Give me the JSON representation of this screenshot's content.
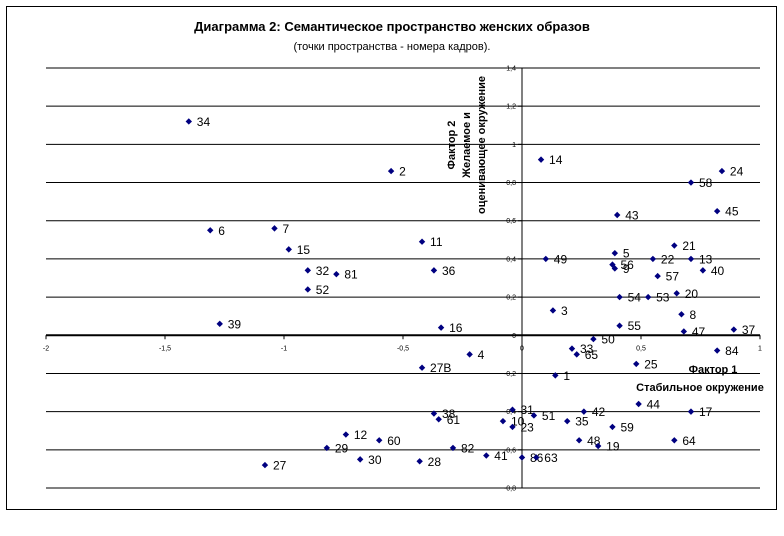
{
  "chart_data": {
    "type": "scatter",
    "title": "Диаграмма 2: Семантическое пространство женских образов",
    "subtitle": "(точки пространства - номера   кадров).",
    "x_axis": {
      "title_lines": [
        "Фактор 1",
        "Стабильное окружение"
      ],
      "range": [
        -2,
        1
      ],
      "ticks": [
        {
          "v": -2,
          "label": "-2"
        },
        {
          "v": -1.5,
          "label": "-1,5"
        },
        {
          "v": -1,
          "label": "-1"
        },
        {
          "v": -0.5,
          "label": "-0,5"
        },
        {
          "v": 0,
          "label": "0"
        },
        {
          "v": 0.5,
          "label": "0,5"
        },
        {
          "v": 1,
          "label": "1"
        }
      ]
    },
    "y_axis": {
      "title_lines": [
        "Фактор 2",
        "Желаемое и",
        "оценивающее окружение"
      ],
      "range": [
        -0.8,
        1.4
      ],
      "ticks": [
        {
          "v": 1.4,
          "label": "1,4"
        },
        {
          "v": 1.2,
          "label": "1,2"
        },
        {
          "v": 1,
          "label": "1"
        },
        {
          "v": 0.8,
          "label": "0,8"
        },
        {
          "v": 0.6,
          "label": "0,6"
        },
        {
          "v": 0.4,
          "label": "0,4"
        },
        {
          "v": 0.2,
          "label": "0,2"
        },
        {
          "v": 0,
          "label": "0"
        },
        {
          "v": -0.2,
          "label": "-0,2"
        },
        {
          "v": -0.4,
          "label": "-0,4"
        },
        {
          "v": -0.6,
          "label": "-0,6"
        },
        {
          "v": -0.8,
          "label": "-0,8"
        }
      ]
    },
    "grid": "horizontal",
    "marker_color": "#000080",
    "points": [
      {
        "label": "34",
        "x": -1.4,
        "y": 1.12
      },
      {
        "label": "2",
        "x": -0.55,
        "y": 0.86
      },
      {
        "label": "14",
        "x": 0.08,
        "y": 0.92
      },
      {
        "label": "24",
        "x": 0.84,
        "y": 0.86
      },
      {
        "label": "58",
        "x": 0.71,
        "y": 0.8
      },
      {
        "label": "43",
        "x": 0.4,
        "y": 0.63
      },
      {
        "label": "45",
        "x": 0.82,
        "y": 0.65
      },
      {
        "label": "6",
        "x": -1.31,
        "y": 0.55
      },
      {
        "label": "7",
        "x": -1.04,
        "y": 0.56
      },
      {
        "label": "11",
        "x": -0.42,
        "y": 0.49
      },
      {
        "label": "15",
        "x": -0.98,
        "y": 0.45
      },
      {
        "label": "21",
        "x": 0.64,
        "y": 0.47
      },
      {
        "label": "5",
        "x": 0.39,
        "y": 0.43
      },
      {
        "label": "22",
        "x": 0.55,
        "y": 0.4
      },
      {
        "label": "13",
        "x": 0.71,
        "y": 0.4
      },
      {
        "label": "49",
        "x": 0.1,
        "y": 0.4
      },
      {
        "label": "56",
        "x": 0.38,
        "y": 0.37
      },
      {
        "label": "9",
        "x": 0.39,
        "y": 0.35
      },
      {
        "label": "40",
        "x": 0.76,
        "y": 0.34
      },
      {
        "label": "32",
        "x": -0.9,
        "y": 0.34
      },
      {
        "label": "36",
        "x": -0.37,
        "y": 0.34
      },
      {
        "label": "81",
        "x": -0.78,
        "y": 0.32
      },
      {
        "label": "57",
        "x": 0.57,
        "y": 0.31
      },
      {
        "label": "52",
        "x": -0.9,
        "y": 0.24
      },
      {
        "label": "20",
        "x": 0.65,
        "y": 0.22
      },
      {
        "label": "54",
        "x": 0.41,
        "y": 0.2
      },
      {
        "label": "53",
        "x": 0.53,
        "y": 0.2
      },
      {
        "label": "3",
        "x": 0.13,
        "y": 0.13
      },
      {
        "label": "8",
        "x": 0.67,
        "y": 0.11
      },
      {
        "label": "39",
        "x": -1.27,
        "y": 0.06
      },
      {
        "label": "16",
        "x": -0.34,
        "y": 0.04
      },
      {
        "label": "55",
        "x": 0.41,
        "y": 0.05
      },
      {
        "label": "37",
        "x": 0.89,
        "y": 0.03
      },
      {
        "label": "47",
        "x": 0.68,
        "y": 0.02
      },
      {
        "label": "50",
        "x": 0.3,
        "y": -0.02
      },
      {
        "label": "33",
        "x": 0.21,
        "y": -0.07
      },
      {
        "label": "65",
        "x": 0.23,
        "y": -0.1
      },
      {
        "label": "4",
        "x": -0.22,
        "y": -0.1
      },
      {
        "label": "84",
        "x": 0.82,
        "y": -0.08
      },
      {
        "label": "27В",
        "x": -0.42,
        "y": -0.17
      },
      {
        "label": "25",
        "x": 0.48,
        "y": -0.15
      },
      {
        "label": "1",
        "x": 0.14,
        "y": -0.21
      },
      {
        "label": "44",
        "x": 0.49,
        "y": -0.36
      },
      {
        "label": "17",
        "x": 0.71,
        "y": -0.4
      },
      {
        "label": "42",
        "x": 0.26,
        "y": -0.4
      },
      {
        "label": "31",
        "x": -0.04,
        "y": -0.39
      },
      {
        "label": "51",
        "x": 0.05,
        "y": -0.42
      },
      {
        "label": "38",
        "x": -0.37,
        "y": -0.41
      },
      {
        "label": "61",
        "x": -0.35,
        "y": -0.44
      },
      {
        "label": "10",
        "x": -0.08,
        "y": -0.45
      },
      {
        "label": "35",
        "x": 0.19,
        "y": -0.45
      },
      {
        "label": "23",
        "x": -0.04,
        "y": -0.48
      },
      {
        "label": "59",
        "x": 0.38,
        "y": -0.48
      },
      {
        "label": "12",
        "x": -0.74,
        "y": -0.52
      },
      {
        "label": "60",
        "x": -0.6,
        "y": -0.55
      },
      {
        "label": "48",
        "x": 0.24,
        "y": -0.55
      },
      {
        "label": "19",
        "x": 0.32,
        "y": -0.58
      },
      {
        "label": "64",
        "x": 0.64,
        "y": -0.55
      },
      {
        "label": "29",
        "x": -0.82,
        "y": -0.59
      },
      {
        "label": "82",
        "x": -0.29,
        "y": -0.59
      },
      {
        "label": "41",
        "x": -0.15,
        "y": -0.63
      },
      {
        "label": "30",
        "x": -0.68,
        "y": -0.65
      },
      {
        "label": "28",
        "x": -0.43,
        "y": -0.66
      },
      {
        "label": "86",
        "x": 0.0,
        "y": -0.64
      },
      {
        "label": "63",
        "x": 0.06,
        "y": -0.64
      },
      {
        "label": "27",
        "x": -1.08,
        "y": -0.68
      }
    ]
  }
}
